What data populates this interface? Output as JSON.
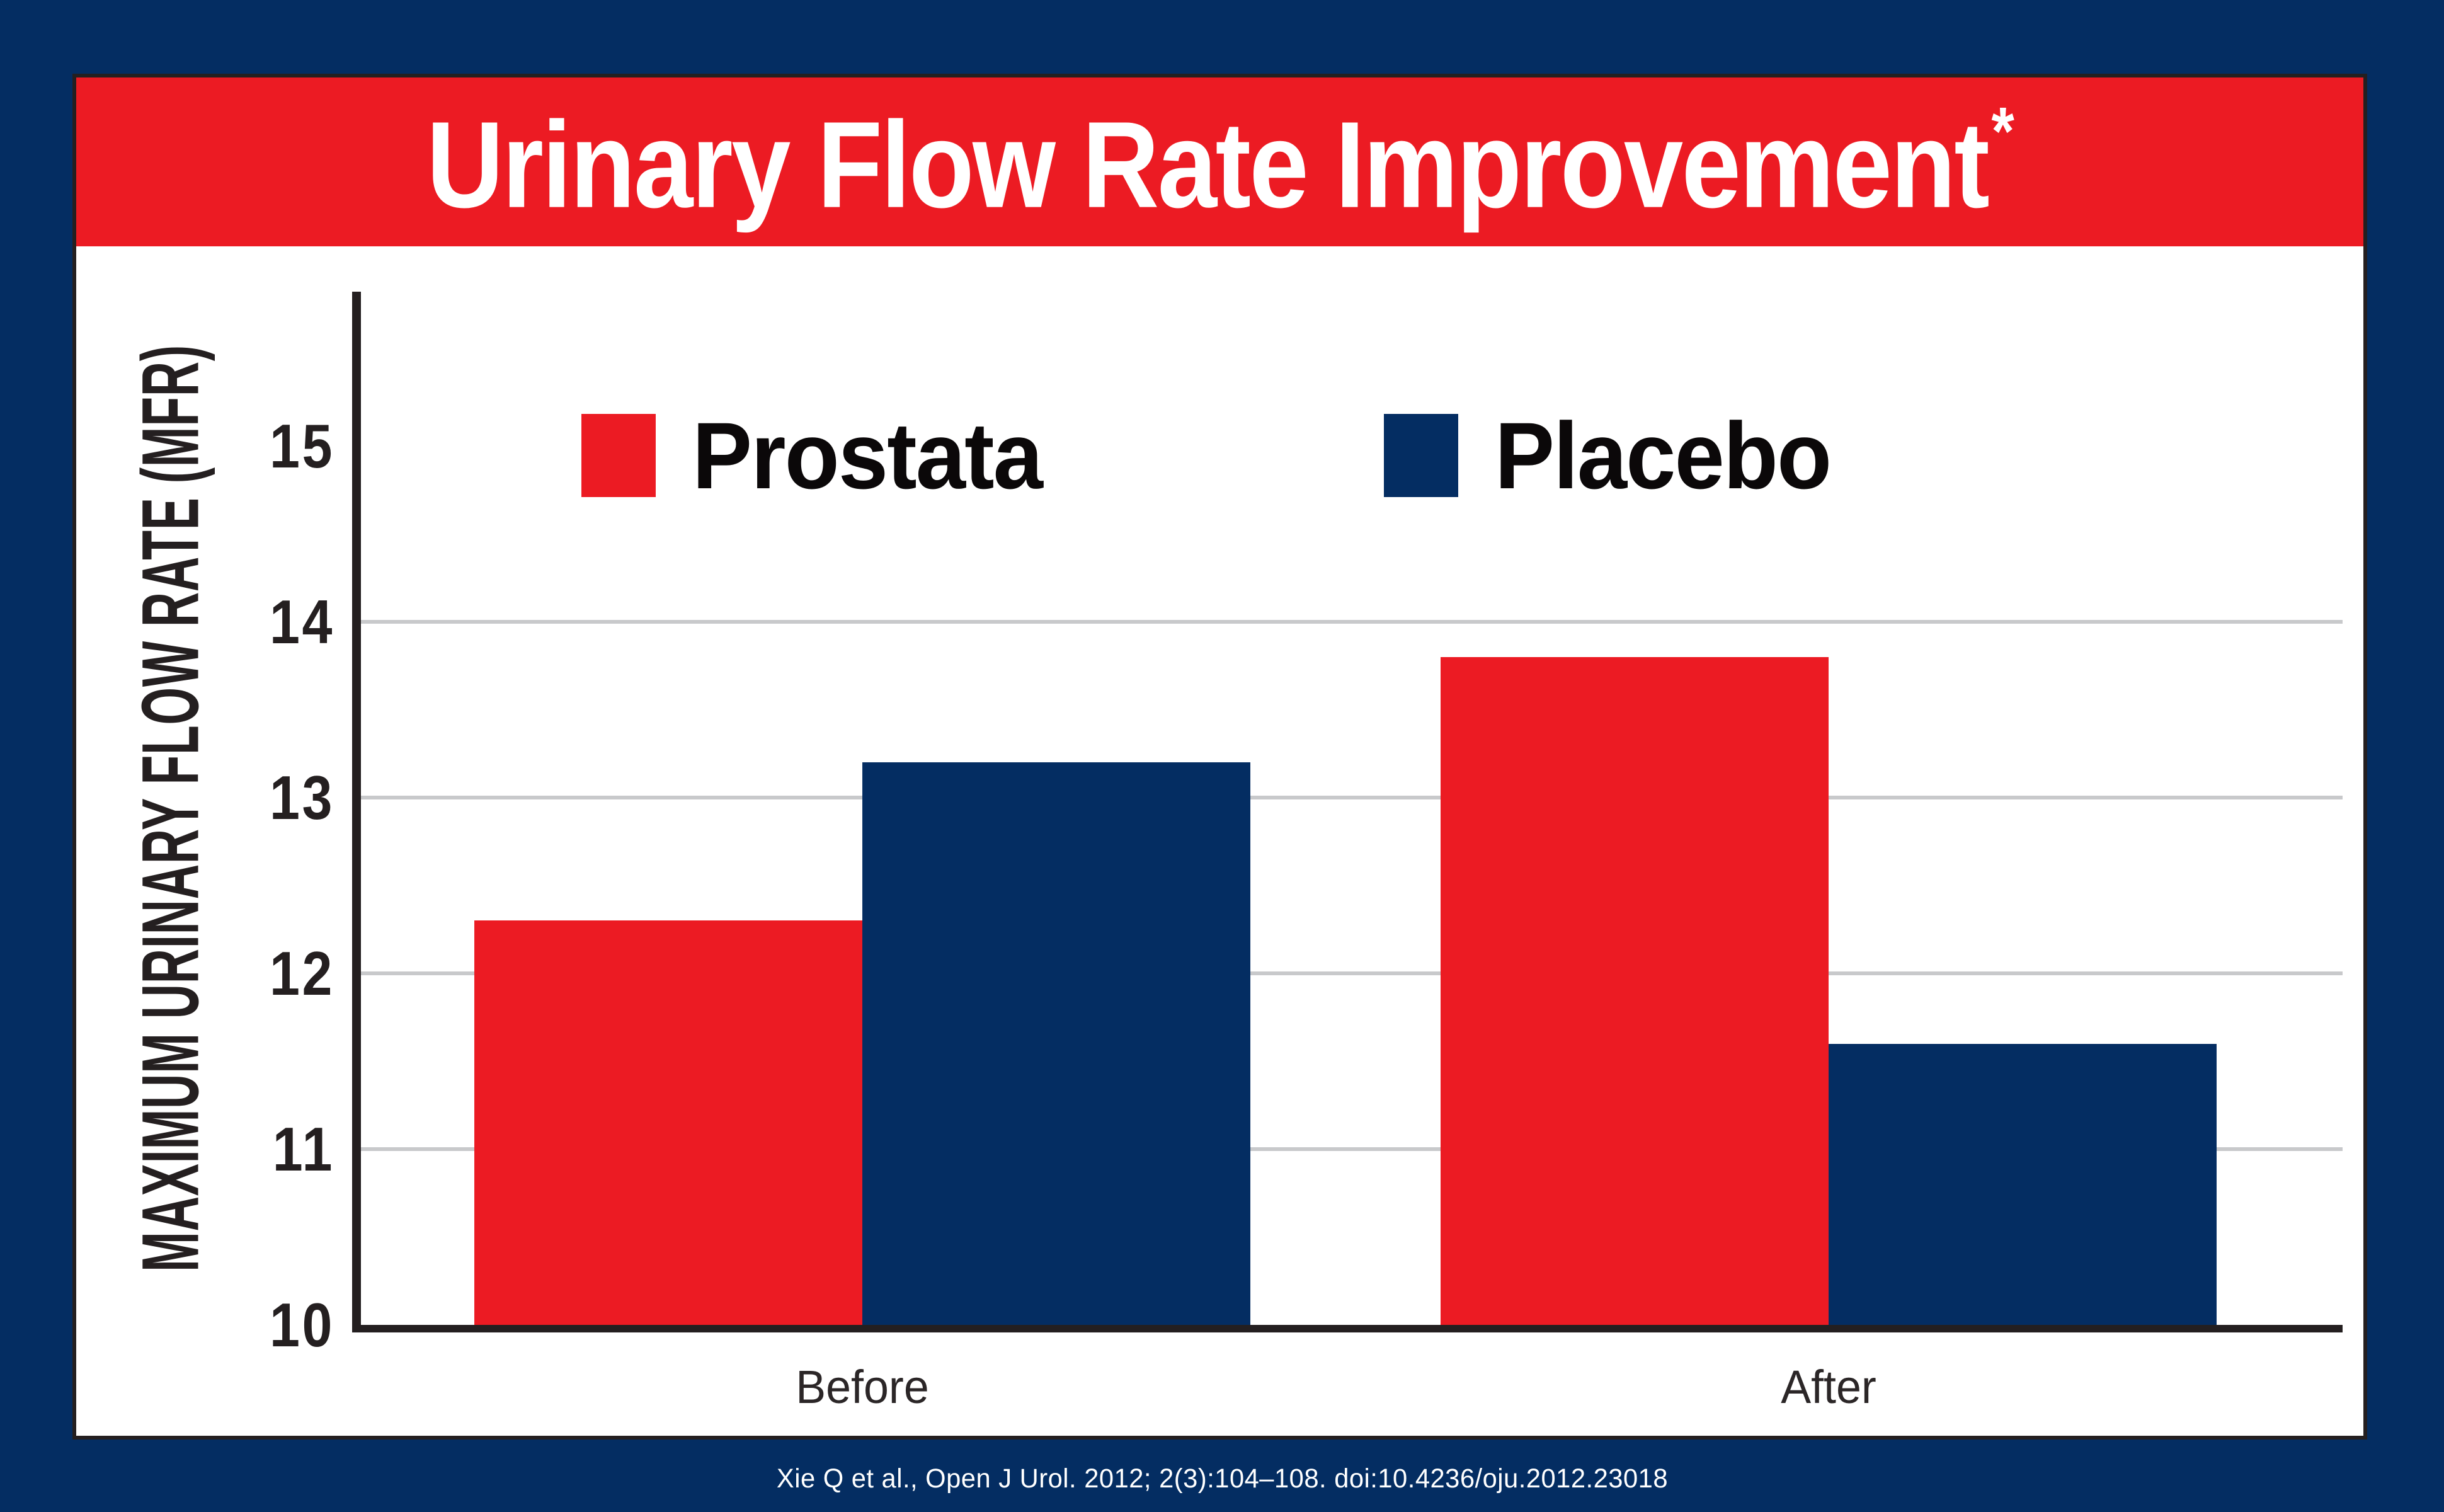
{
  "header": {
    "title": "Urinary Flow Rate Improvement",
    "asterisk": "*"
  },
  "footer": {
    "citation": "Xie Q et al., Open J Urol. 2012; 2(3):104–108. doi:10.4236/oju.2012.23018"
  },
  "chart_data": {
    "type": "bar",
    "title": "Urinary Flow Rate Improvement*",
    "categories": [
      "Before",
      "After"
    ],
    "series": [
      {
        "name": "Prostata",
        "color": "#EC1B23",
        "values": [
          12.3,
          13.8
        ]
      },
      {
        "name": "Placebo",
        "color": "#042D62",
        "values": [
          13.2,
          11.6
        ]
      }
    ],
    "xlabel": "",
    "ylabel": "MAXIMUM URINARY FLOW RATE (MFR)",
    "ylim": [
      10,
      15.9
    ],
    "yticks": [
      15,
      14,
      13,
      12,
      11,
      10
    ],
    "gridline_values": [
      14,
      13,
      12,
      11
    ],
    "grid": "horizontal gridlines only, no gridline at 15",
    "legend_position": "top inside plot area",
    "bar_baseline": 10
  },
  "colors": {
    "background_navy": "#042D62",
    "banner_red": "#EC1B23",
    "bar_red": "#EC1B23",
    "bar_navy": "#042D62",
    "card_bg": "#FFFFFF",
    "axis_dark": "#241F20",
    "gridline_gray": "#C8C9CB",
    "title_text": "#FFFFFF",
    "citation_text": "#FFFFFF"
  }
}
